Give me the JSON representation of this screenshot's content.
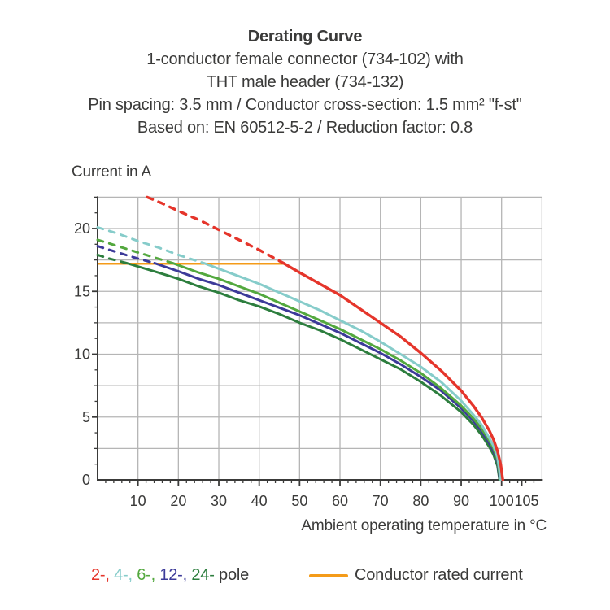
{
  "header": {
    "title": "Derating Curve",
    "subtitle_lines": [
      "1-conductor female connector (734-102) with",
      "THT male header (734-132)",
      "Pin spacing: 3.5 mm / Conductor cross-section: 1.5 mm² \"f-st\"",
      "Based on: EN 60512-5-2 / Reduction factor: 0.8"
    ]
  },
  "chart_data": {
    "type": "line",
    "title": "Derating Curve",
    "ylabel": "Current in A",
    "xlabel": "Ambient operating temperature in °C",
    "xlim": [
      0,
      110
    ],
    "ylim": [
      0,
      22.5
    ],
    "grid": true,
    "x_grid_step": 10,
    "y_grid_step": 2.5,
    "x_tick_labels": [
      10,
      20,
      30,
      40,
      50,
      60,
      70,
      80,
      90,
      100,
      105
    ],
    "y_tick_labels": [
      0,
      5,
      10,
      15,
      20
    ],
    "colors": {
      "grid": "#b5b5b5",
      "axis": "#3a3a39",
      "text": "#3a3a39"
    },
    "cap_line": {
      "label": "Conductor rated current",
      "value": 17.2,
      "x_start": 0,
      "x_end": 46,
      "color": "#f49b19"
    },
    "series": [
      {
        "name": "2-pole",
        "color": "#e5352b",
        "width": 3.4,
        "dashed": [
          [
            12.3,
            22.5
          ],
          [
            16,
            22.0
          ],
          [
            20,
            21.4
          ],
          [
            25,
            20.7
          ],
          [
            30,
            19.9
          ],
          [
            35,
            19.1
          ],
          [
            40,
            18.3
          ],
          [
            46,
            17.25
          ]
        ],
        "solid": [
          [
            46,
            17.25
          ],
          [
            50,
            16.5
          ],
          [
            55,
            15.6
          ],
          [
            60,
            14.7
          ],
          [
            65,
            13.6
          ],
          [
            70,
            12.5
          ],
          [
            75,
            11.4
          ],
          [
            80,
            10.1
          ],
          [
            85,
            8.7
          ],
          [
            90,
            7.1
          ],
          [
            93,
            5.9
          ],
          [
            95,
            5.0
          ],
          [
            97,
            3.9
          ],
          [
            98,
            3.2
          ],
          [
            99,
            2.3
          ],
          [
            99.8,
            1.2
          ],
          [
            100.3,
            0
          ]
        ]
      },
      {
        "name": "4-pole",
        "color": "#86ccca",
        "width": 3,
        "dashed": [
          [
            0,
            20.1
          ],
          [
            5,
            19.6
          ],
          [
            10,
            19.0
          ],
          [
            15,
            18.5
          ],
          [
            20,
            17.9
          ],
          [
            26.3,
            17.25
          ]
        ],
        "solid": [
          [
            26.3,
            17.25
          ],
          [
            30,
            16.8
          ],
          [
            35,
            16.2
          ],
          [
            40,
            15.6
          ],
          [
            45,
            14.9
          ],
          [
            50,
            14.2
          ],
          [
            55,
            13.5
          ],
          [
            60,
            12.7
          ],
          [
            65,
            11.9
          ],
          [
            70,
            11.0
          ],
          [
            75,
            10.0
          ],
          [
            80,
            9.0
          ],
          [
            85,
            7.8
          ],
          [
            90,
            6.3
          ],
          [
            93,
            5.2
          ],
          [
            95,
            4.4
          ],
          [
            97,
            3.3
          ],
          [
            98,
            2.7
          ],
          [
            99,
            1.8
          ],
          [
            99.8,
            0
          ]
        ]
      },
      {
        "name": "6-pole",
        "color": "#53a83e",
        "width": 3,
        "dashed": [
          [
            0,
            19.1
          ],
          [
            5,
            18.6
          ],
          [
            10,
            18.1
          ],
          [
            14,
            17.7
          ],
          [
            18.6,
            17.25
          ]
        ],
        "solid": [
          [
            18.6,
            17.25
          ],
          [
            25,
            16.5
          ],
          [
            30,
            16.0
          ],
          [
            35,
            15.4
          ],
          [
            40,
            14.8
          ],
          [
            45,
            14.1
          ],
          [
            50,
            13.4
          ],
          [
            55,
            12.7
          ],
          [
            60,
            12.0
          ],
          [
            65,
            11.2
          ],
          [
            70,
            10.4
          ],
          [
            75,
            9.5
          ],
          [
            80,
            8.5
          ],
          [
            85,
            7.3
          ],
          [
            90,
            5.9
          ],
          [
            93,
            4.9
          ],
          [
            95,
            4.1
          ],
          [
            97,
            3.1
          ],
          [
            98,
            2.5
          ],
          [
            99,
            1.6
          ],
          [
            99.7,
            0
          ]
        ]
      },
      {
        "name": "12-pole",
        "color": "#3c3a99",
        "width": 3,
        "dashed": [
          [
            0,
            18.6
          ],
          [
            5,
            18.1
          ],
          [
            9,
            17.7
          ],
          [
            14.1,
            17.25
          ]
        ],
        "solid": [
          [
            14.1,
            17.25
          ],
          [
            20,
            16.6
          ],
          [
            25,
            16.0
          ],
          [
            30,
            15.5
          ],
          [
            35,
            14.9
          ],
          [
            40,
            14.3
          ],
          [
            45,
            13.7
          ],
          [
            50,
            13.1
          ],
          [
            55,
            12.4
          ],
          [
            60,
            11.7
          ],
          [
            65,
            10.9
          ],
          [
            70,
            10.1
          ],
          [
            75,
            9.2
          ],
          [
            80,
            8.2
          ],
          [
            85,
            7.1
          ],
          [
            90,
            5.7
          ],
          [
            93,
            4.7
          ],
          [
            95,
            3.9
          ],
          [
            97,
            2.9
          ],
          [
            98,
            2.3
          ],
          [
            99,
            1.4
          ],
          [
            99.6,
            0
          ]
        ]
      },
      {
        "name": "24-pole",
        "color": "#2d7e3e",
        "width": 3,
        "dashed": [
          [
            0,
            17.9
          ],
          [
            3,
            17.6
          ],
          [
            7.2,
            17.25
          ]
        ],
        "solid": [
          [
            7.2,
            17.25
          ],
          [
            15,
            16.5
          ],
          [
            20,
            16.0
          ],
          [
            25,
            15.4
          ],
          [
            30,
            14.9
          ],
          [
            35,
            14.3
          ],
          [
            40,
            13.8
          ],
          [
            45,
            13.2
          ],
          [
            50,
            12.5
          ],
          [
            55,
            11.9
          ],
          [
            60,
            11.2
          ],
          [
            65,
            10.4
          ],
          [
            70,
            9.6
          ],
          [
            75,
            8.8
          ],
          [
            80,
            7.8
          ],
          [
            85,
            6.7
          ],
          [
            90,
            5.4
          ],
          [
            93,
            4.4
          ],
          [
            95,
            3.6
          ],
          [
            97,
            2.6
          ],
          [
            98,
            2.0
          ],
          [
            99,
            1.1
          ],
          [
            99.5,
            0
          ]
        ]
      }
    ]
  },
  "legend": {
    "poles": [
      {
        "label": "2-,",
        "color": "#e5352b"
      },
      {
        "label": "4-,",
        "color": "#86ccca"
      },
      {
        "label": "6-,",
        "color": "#53a83e"
      },
      {
        "label": "12-,",
        "color": "#3c3a99"
      },
      {
        "label": "24-",
        "color": "#2d7e3e"
      }
    ],
    "poles_suffix": "pole",
    "rated_label": "Conductor rated current",
    "rated_color": "#f49b19"
  }
}
